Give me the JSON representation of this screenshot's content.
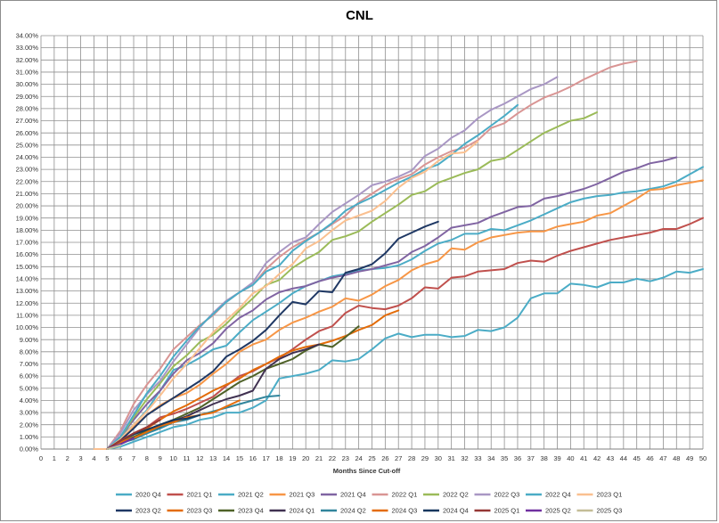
{
  "chart_data": {
    "type": "line",
    "title": "CNL",
    "xlabel": "Months Since Cut-off",
    "ylabel": "",
    "xlim": [
      0,
      50
    ],
    "ylim": [
      0,
      34
    ],
    "y_tick_step": 1,
    "y_tick_suffix": "%",
    "y_tick_decimals": 2,
    "grid": true,
    "legend_position": "bottom",
    "series": [
      {
        "name": "2020 Q4",
        "color": "#4bacc6",
        "x": [
          4,
          5,
          6,
          7,
          8,
          9,
          10,
          11,
          12,
          13,
          14,
          15,
          16,
          17,
          18,
          19,
          20,
          21,
          22,
          23,
          24,
          25,
          26,
          27,
          28,
          29,
          30,
          31,
          32,
          33,
          34,
          35,
          36,
          37,
          38,
          39,
          40,
          41,
          42,
          43,
          44,
          45,
          46,
          47,
          48,
          49,
          50
        ],
        "y": [
          0,
          0,
          0.2,
          0.6,
          1.0,
          1.4,
          1.8,
          2.0,
          2.4,
          2.6,
          3.0,
          3.0,
          3.4,
          4.0,
          5.8,
          6.0,
          6.2,
          6.5,
          7.3,
          7.2,
          7.4,
          8.2,
          9.1,
          9.5,
          9.2,
          9.4,
          9.4,
          9.2,
          9.3,
          9.8,
          9.7,
          10.0,
          10.8,
          12.4,
          12.8,
          12.8,
          13.6,
          13.5,
          13.3,
          13.7,
          13.7,
          14.0,
          13.8,
          14.1,
          14.6,
          14.5,
          14.8
        ]
      },
      {
        "name": "2021 Q1",
        "color": "#c0504d",
        "x": [
          4,
          5,
          6,
          7,
          8,
          9,
          10,
          11,
          12,
          13,
          14,
          15,
          16,
          17,
          18,
          19,
          20,
          21,
          22,
          23,
          24,
          25,
          26,
          27,
          28,
          29,
          30,
          31,
          32,
          33,
          34,
          35,
          36,
          37,
          38,
          39,
          40,
          41,
          42,
          43,
          44,
          45,
          46,
          47,
          48,
          49,
          50
        ],
        "y": [
          0,
          0,
          0.6,
          1.3,
          1.8,
          2.6,
          2.9,
          3.3,
          3.8,
          4.3,
          5.2,
          6.0,
          6.4,
          7.0,
          7.5,
          8.2,
          9.0,
          9.7,
          10.1,
          11.2,
          11.8,
          11.6,
          11.5,
          11.8,
          12.4,
          13.3,
          13.2,
          14.1,
          14.2,
          14.6,
          14.7,
          14.8,
          15.3,
          15.5,
          15.4,
          15.9,
          16.3,
          16.6,
          16.9,
          17.2,
          17.4,
          17.6,
          17.8,
          18.1,
          18.1,
          18.5,
          19.0
        ]
      },
      {
        "name": "2021 Q2",
        "color": "#4bacc6",
        "x": [
          4,
          5,
          6,
          7,
          8,
          9,
          10,
          11,
          12,
          13,
          14,
          15,
          16,
          17,
          18,
          19,
          20,
          21,
          22,
          23,
          24,
          25,
          26,
          27,
          28,
          29,
          30,
          31,
          32,
          33,
          34,
          35,
          36,
          37,
          38,
          39,
          40,
          41,
          42,
          43,
          44,
          45,
          46,
          47,
          48,
          49,
          50
        ],
        "y": [
          0,
          0,
          1.0,
          2.0,
          3.2,
          4.8,
          6.5,
          6.9,
          7.5,
          8.2,
          8.5,
          9.6,
          10.6,
          11.3,
          12.0,
          12.8,
          13.4,
          13.8,
          14.2,
          14.4,
          14.7,
          14.8,
          14.9,
          15.1,
          15.6,
          16.3,
          16.9,
          17.2,
          17.7,
          17.7,
          18.1,
          18.0,
          18.4,
          18.8,
          19.3,
          19.8,
          20.3,
          20.6,
          20.8,
          20.9,
          21.1,
          21.2,
          21.4,
          21.6,
          22.0,
          22.6,
          23.2
        ]
      },
      {
        "name": "2021 Q3",
        "color": "#f79646",
        "x": [
          4,
          5,
          6,
          7,
          8,
          9,
          10,
          11,
          12,
          13,
          14,
          15,
          16,
          17,
          18,
          19,
          20,
          21,
          22,
          23,
          24,
          25,
          26,
          27,
          28,
          29,
          30,
          31,
          32,
          33,
          34,
          35,
          36,
          37,
          38,
          39,
          40,
          41,
          42,
          43,
          44,
          45,
          46,
          47,
          48,
          49,
          50
        ],
        "y": [
          0,
          0,
          0.8,
          1.8,
          2.8,
          3.6,
          4.2,
          4.6,
          5.3,
          6.2,
          7.0,
          8.0,
          8.6,
          9.0,
          9.8,
          10.4,
          10.8,
          11.3,
          11.7,
          12.4,
          12.2,
          12.7,
          13.4,
          13.9,
          14.7,
          15.2,
          15.5,
          16.5,
          16.4,
          17.0,
          17.4,
          17.6,
          17.8,
          17.9,
          17.9,
          18.3,
          18.5,
          18.7,
          19.2,
          19.4,
          20.0,
          20.6,
          21.3,
          21.4,
          21.7,
          21.9,
          22.1
        ]
      },
      {
        "name": "2021 Q4",
        "color": "#8064a2",
        "x": [
          4,
          5,
          6,
          7,
          8,
          9,
          10,
          11,
          12,
          13,
          14,
          15,
          16,
          17,
          18,
          19,
          20,
          21,
          22,
          23,
          24,
          25,
          26,
          27,
          28,
          29,
          30,
          31,
          32,
          33,
          34,
          35,
          36,
          37,
          38,
          39,
          40,
          41,
          42,
          43,
          44,
          45,
          46,
          47,
          48
        ],
        "y": [
          0,
          0,
          1.0,
          2.4,
          3.7,
          4.8,
          6.2,
          7.3,
          7.9,
          8.7,
          9.9,
          10.8,
          11.4,
          12.3,
          12.9,
          13.2,
          13.4,
          13.8,
          14.1,
          14.3,
          14.6,
          14.8,
          15.1,
          15.4,
          16.2,
          16.7,
          17.4,
          18.2,
          18.4,
          18.6,
          19.1,
          19.5,
          19.9,
          20.0,
          20.6,
          20.8,
          21.1,
          21.4,
          21.8,
          22.3,
          22.8,
          23.1,
          23.5,
          23.7,
          24.0
        ]
      },
      {
        "name": "2022 Q1",
        "color": "#d99594",
        "x": [
          4,
          5,
          6,
          7,
          8,
          9,
          10,
          11,
          12,
          13,
          14,
          15,
          16,
          17,
          18,
          19,
          20,
          21,
          22,
          23,
          24,
          25,
          26,
          27,
          28,
          29,
          30,
          31,
          32,
          33,
          34,
          35,
          36,
          37,
          38,
          39,
          40,
          41,
          42,
          43,
          44,
          45
        ],
        "y": [
          0,
          0,
          1.5,
          3.7,
          5.3,
          6.6,
          8.2,
          9.2,
          10.2,
          11.0,
          12.1,
          12.9,
          13.5,
          14.8,
          15.8,
          16.6,
          17.2,
          17.8,
          18.5,
          19.2,
          20.3,
          21.0,
          21.7,
          22.2,
          22.6,
          23.4,
          24.0,
          24.5,
          24.8,
          25.4,
          26.4,
          26.8,
          27.6,
          28.3,
          28.9,
          29.3,
          29.8,
          30.4,
          30.9,
          31.4,
          31.7,
          31.9
        ]
      },
      {
        "name": "2022 Q2",
        "color": "#9bbb59",
        "x": [
          4,
          5,
          6,
          7,
          8,
          9,
          10,
          11,
          12,
          13,
          14,
          15,
          16,
          17,
          18,
          19,
          20,
          21,
          22,
          23,
          24,
          25,
          26,
          27,
          28,
          29,
          30,
          31,
          32,
          33,
          34,
          35,
          36,
          37,
          38,
          39,
          40,
          41,
          42
        ],
        "y": [
          0,
          0,
          1.0,
          2.6,
          4.1,
          5.4,
          6.8,
          7.7,
          8.8,
          9.4,
          10.3,
          11.4,
          12.4,
          13.5,
          13.9,
          14.9,
          15.6,
          16.2,
          17.2,
          17.5,
          17.9,
          18.7,
          19.4,
          20.1,
          20.9,
          21.2,
          21.9,
          22.3,
          22.7,
          23.0,
          23.7,
          23.9,
          24.6,
          25.3,
          26.0,
          26.5,
          27.0,
          27.2,
          27.7
        ]
      },
      {
        "name": "2022 Q3",
        "color": "#a997c4",
        "x": [
          4,
          5,
          6,
          7,
          8,
          9,
          10,
          11,
          12,
          13,
          14,
          15,
          16,
          17,
          18,
          19,
          20,
          21,
          22,
          23,
          24,
          25,
          26,
          27,
          28,
          29,
          30,
          31,
          32,
          33,
          34,
          35,
          36,
          37,
          38,
          39
        ],
        "y": [
          0,
          0,
          1.3,
          3.2,
          4.5,
          5.6,
          7.2,
          8.6,
          10.0,
          11.2,
          12.2,
          12.9,
          13.7,
          15.3,
          16.2,
          17.0,
          17.4,
          18.5,
          19.5,
          20.2,
          20.9,
          21.7,
          22.0,
          22.4,
          22.9,
          24.1,
          24.7,
          25.6,
          26.2,
          27.2,
          27.9,
          28.4,
          29.0,
          29.6,
          30.0,
          30.6
        ]
      },
      {
        "name": "2022 Q4",
        "color": "#4bacc6",
        "x": [
          4,
          5,
          6,
          7,
          8,
          9,
          10,
          11,
          12,
          13,
          14,
          15,
          16,
          17,
          18,
          19,
          20,
          21,
          22,
          23,
          24,
          25,
          26,
          27,
          28,
          29,
          30,
          31,
          32,
          33,
          34,
          35,
          36
        ],
        "y": [
          0,
          0,
          1.0,
          2.8,
          4.6,
          6.0,
          7.6,
          8.9,
          10.1,
          11.1,
          12.1,
          12.9,
          13.5,
          14.6,
          15.1,
          16.3,
          17.1,
          17.8,
          18.6,
          19.6,
          20.2,
          20.7,
          21.3,
          21.9,
          22.4,
          23.0,
          23.4,
          24.2,
          25.1,
          25.8,
          26.6,
          27.4,
          28.3
        ]
      },
      {
        "name": "2023 Q1",
        "color": "#fac090",
        "x": [
          4,
          5,
          6,
          7,
          8,
          9,
          10,
          11,
          12,
          13,
          14,
          15,
          16,
          17,
          18,
          19,
          20,
          21,
          22,
          23,
          24,
          25,
          26,
          27,
          28,
          29,
          30,
          31,
          32,
          33
        ],
        "y": [
          0,
          0,
          0.8,
          2.0,
          3.1,
          4.4,
          5.8,
          7.0,
          8.3,
          9.6,
          10.6,
          11.6,
          12.8,
          13.4,
          14.4,
          15.2,
          16.5,
          17.1,
          18.0,
          18.8,
          19.2,
          19.6,
          20.4,
          21.5,
          22.3,
          22.8,
          23.7,
          24.3,
          24.4,
          25.3
        ]
      },
      {
        "name": "2023 Q2",
        "color": "#1f3864",
        "x": [
          5,
          6,
          7,
          8,
          9,
          10,
          11,
          12,
          13,
          14,
          15,
          16,
          17,
          18,
          19,
          20,
          21,
          22,
          23,
          24,
          25,
          26,
          27,
          28,
          29,
          30
        ],
        "y": [
          0,
          0.7,
          1.7,
          2.8,
          3.5,
          4.2,
          4.9,
          5.6,
          6.4,
          7.6,
          8.2,
          8.9,
          9.8,
          11.0,
          12.1,
          11.9,
          13.0,
          12.9,
          14.5,
          14.8,
          15.2,
          16.1,
          17.3,
          17.8,
          18.3,
          18.7
        ]
      },
      {
        "name": "2023 Q3",
        "color": "#e36c09",
        "x": [
          5,
          6,
          7,
          8,
          9,
          10,
          11,
          12,
          13,
          14,
          15,
          16,
          17,
          18,
          19,
          20,
          21,
          22,
          23,
          24,
          25,
          26,
          27
        ],
        "y": [
          0,
          0.5,
          1.2,
          1.7,
          2.4,
          3.1,
          3.6,
          4.2,
          4.8,
          5.3,
          5.8,
          6.5,
          7.0,
          7.6,
          8.1,
          8.4,
          8.6,
          8.9,
          9.3,
          9.8,
          10.2,
          11.0,
          11.4
        ]
      },
      {
        "name": "2023 Q4",
        "color": "#4f6228",
        "x": [
          5,
          6,
          7,
          8,
          9,
          10,
          11,
          12,
          13,
          14,
          15,
          16,
          17,
          18,
          19,
          20,
          21,
          22,
          23,
          24
        ],
        "y": [
          0,
          0.4,
          1.0,
          1.5,
          2.0,
          2.4,
          2.9,
          3.4,
          4.1,
          4.8,
          5.5,
          6.0,
          6.6,
          7.0,
          7.4,
          8.1,
          8.6,
          8.4,
          9.2,
          10.1
        ]
      },
      {
        "name": "2024 Q1",
        "color": "#403151",
        "x": [
          5,
          6,
          7,
          8,
          9,
          10,
          11,
          12,
          13,
          14,
          15,
          16,
          17,
          18,
          19,
          20,
          21
        ],
        "y": [
          0,
          0.4,
          0.9,
          1.3,
          1.8,
          2.3,
          2.7,
          3.2,
          3.7,
          4.1,
          4.4,
          4.8,
          6.6,
          7.4,
          7.9,
          8.2,
          8.6
        ]
      },
      {
        "name": "2024 Q2",
        "color": "#31859c",
        "x": [
          5,
          6,
          7,
          8,
          9,
          10,
          11,
          12,
          13,
          14,
          15,
          16,
          17,
          18
        ],
        "y": [
          0,
          0.5,
          0.8,
          1.3,
          1.7,
          2.2,
          2.4,
          2.8,
          3.1,
          3.4,
          3.7,
          4.0,
          4.3,
          4.4
        ]
      },
      {
        "name": "2024 Q3",
        "color": "#e46c0a",
        "x": [
          5,
          6,
          7,
          8,
          9,
          10,
          11,
          12,
          13,
          14,
          15
        ],
        "y": [
          0,
          0.5,
          0.9,
          1.4,
          1.9,
          2.2,
          2.6,
          2.8,
          3.0,
          3.5,
          4.0
        ]
      },
      {
        "name": "2024 Q4",
        "color": "#17375e",
        "x": [
          5,
          6,
          7,
          8,
          9,
          10,
          11,
          12
        ],
        "y": [
          0,
          0.7,
          1.2,
          1.6,
          2.0,
          2.4,
          2.5,
          2.8
        ]
      },
      {
        "name": "2025 Q1",
        "color": "#953735",
        "x": [
          5,
          6,
          7,
          8,
          9
        ],
        "y": [
          0,
          0.7,
          1.3,
          1.8,
          2.4
        ]
      },
      {
        "name": "2025 Q2",
        "color": "#7030a0",
        "x": [
          5,
          6,
          7
        ],
        "y": [
          0,
          0.4,
          0.9
        ]
      },
      {
        "name": "2025 Q3",
        "color": "#c4bd97",
        "x": [
          5,
          6
        ],
        "y": [
          0,
          0.3
        ]
      }
    ]
  }
}
